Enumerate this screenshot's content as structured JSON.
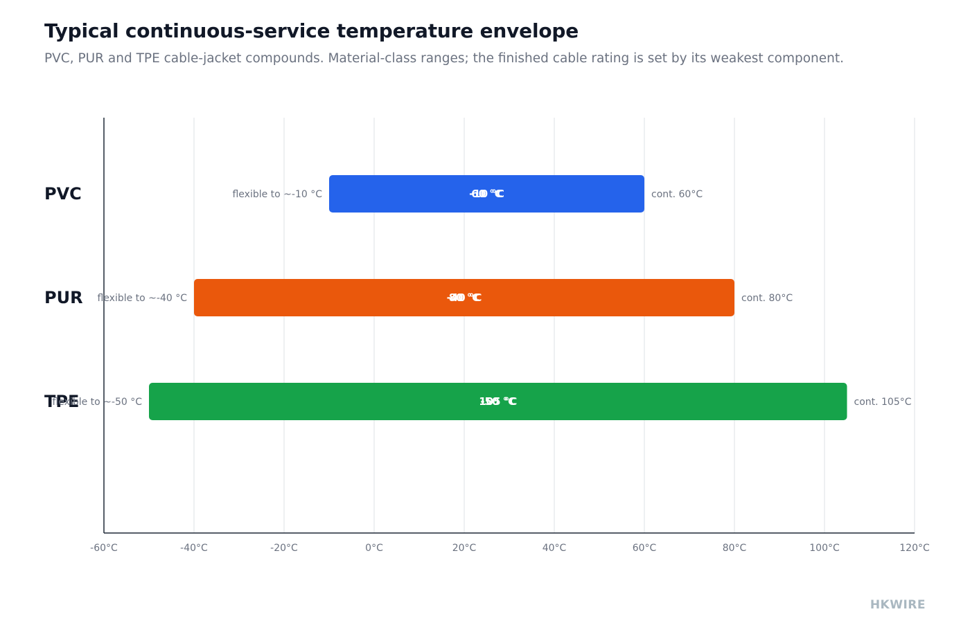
{
  "header": {
    "title": "Typical continuous-service temperature envelope",
    "subtitle": "PVC, PUR and TPE cable-jacket compounds. Material-class ranges; the finished cable rating is set by its weakest component."
  },
  "brand": "HKWIRE",
  "chart_data": {
    "type": "bar",
    "orientation": "horizontal-range",
    "x_unit": "°C",
    "xlim": [
      -60,
      120
    ],
    "xticks": [
      -60,
      -40,
      -20,
      0,
      20,
      40,
      60,
      80,
      100,
      120
    ],
    "xtick_labels": [
      "-60°C",
      "-40°C",
      "-20°C",
      "0°C",
      "20°C",
      "40°C",
      "60°C",
      "80°C",
      "100°C",
      "120°C"
    ],
    "grid": true,
    "categories": [
      "PVC",
      "PUR",
      "TPE"
    ],
    "series": [
      {
        "category": "PVC",
        "min": -10,
        "max": 60,
        "color": "#2563eb",
        "min_label": "-10 °C",
        "max_label": "60 °C",
        "left_annotation": "flexible to ~-10 °C",
        "right_annotation": "cont. 60°C"
      },
      {
        "category": "PUR",
        "min": -40,
        "max": 80,
        "color": "#ea580c",
        "min_label": "-40 °C",
        "max_label": "80 °C",
        "left_annotation": "flexible to ~-40 °C",
        "right_annotation": "cont. 80°C"
      },
      {
        "category": "TPE",
        "min": -50,
        "max": 105,
        "color": "#16a34a",
        "min_label": "-50 °C",
        "max_label": "105 °C",
        "left_annotation": "flexible to ~-50 °C",
        "right_annotation": "cont. 105°C"
      }
    ]
  }
}
